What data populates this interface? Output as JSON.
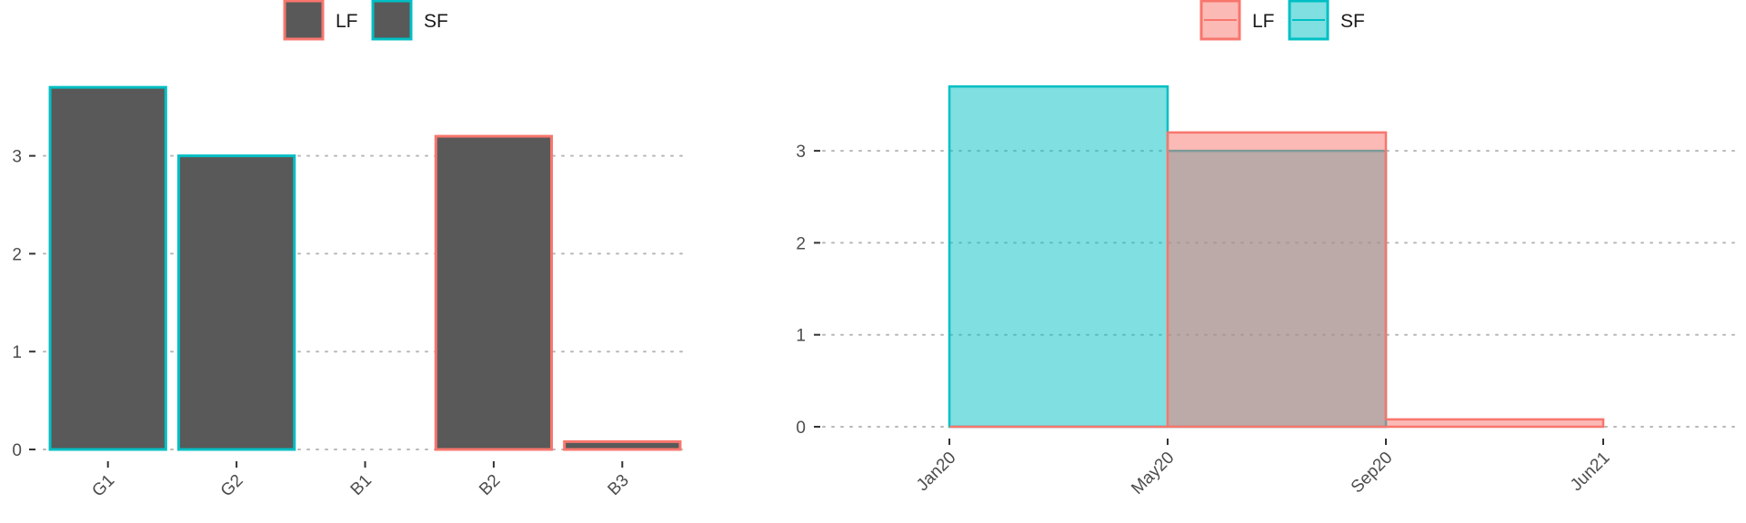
{
  "chart_data": [
    {
      "type": "bar",
      "categories": [
        "G1",
        "G2",
        "B1",
        "B2",
        "B3"
      ],
      "values": [
        3.7,
        3.0,
        0.0,
        3.2,
        0.08
      ],
      "bar_group": [
        "SF",
        "SF",
        "LF",
        "LF",
        "LF"
      ],
      "ylim": [
        0,
        3.85
      ],
      "yticks": [
        0,
        1,
        2,
        3
      ],
      "title": "",
      "xlabel": "",
      "ylabel": "",
      "grid": "horizontal-dotted",
      "legend": {
        "placement": "top",
        "entries": [
          {
            "name": "LF",
            "fill": "#595959",
            "stroke": "#f8766d"
          },
          {
            "name": "SF",
            "fill": "#595959",
            "stroke": "#00bfc4"
          }
        ]
      }
    },
    {
      "type": "area",
      "x_ticks": [
        "Jan20",
        "May20",
        "Sep20",
        "Jun21"
      ],
      "ylim": [
        0,
        3.85
      ],
      "yticks": [
        0,
        1,
        2,
        3
      ],
      "title": "",
      "xlabel": "",
      "ylabel": "",
      "grid": "horizontal-dotted",
      "step": true,
      "series": [
        {
          "name": "LF",
          "color": "#f8766d",
          "fill": "#f8766d",
          "points": [
            {
              "x": "Jan20",
              "y": 0.0
            },
            {
              "x": "May20",
              "y": 3.2
            },
            {
              "x": "Sep20",
              "y": 0.08
            },
            {
              "x": "Jun21",
              "y": 0.08
            }
          ]
        },
        {
          "name": "SF",
          "color": "#00bfc4",
          "fill": "#00bfc4",
          "points": [
            {
              "x": "Jan20",
              "y": 3.7
            },
            {
              "x": "May20",
              "y": 3.0
            },
            {
              "x": "Sep20",
              "y": 0.0
            }
          ]
        }
      ],
      "legend": {
        "placement": "top",
        "entries": [
          {
            "name": "LF",
            "color": "#f8766d"
          },
          {
            "name": "SF",
            "color": "#00bfc4"
          }
        ]
      }
    }
  ]
}
